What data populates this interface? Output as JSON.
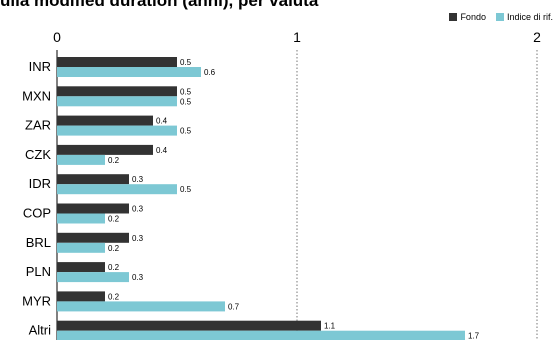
{
  "title": "ulla modified duration (anni), per valuta",
  "colors": {
    "fondo": "#333333",
    "indice": "#7dc8d4",
    "grid": "#555555"
  },
  "chart_data": {
    "type": "bar",
    "orientation": "horizontal",
    "title": "ulla modified duration (anni), per valuta",
    "categories": [
      "INR",
      "MXN",
      "ZAR",
      "CZK",
      "IDR",
      "COP",
      "BRL",
      "PLN",
      "MYR",
      "Altri"
    ],
    "series": [
      {
        "name": "Fondo",
        "values": [
          0.5,
          0.5,
          0.4,
          0.4,
          0.3,
          0.3,
          0.3,
          0.2,
          0.2,
          1.1
        ]
      },
      {
        "name": "Indice di rif.",
        "values": [
          0.6,
          0.5,
          0.5,
          0.2,
          0.5,
          0.2,
          0.2,
          0.3,
          0.7,
          1.7
        ]
      }
    ],
    "xlim": [
      0,
      2
    ],
    "xticks": [
      "0",
      "1",
      "2"
    ],
    "grid": "vertical dotted at 1 and 2",
    "legend_position": "top-right"
  }
}
